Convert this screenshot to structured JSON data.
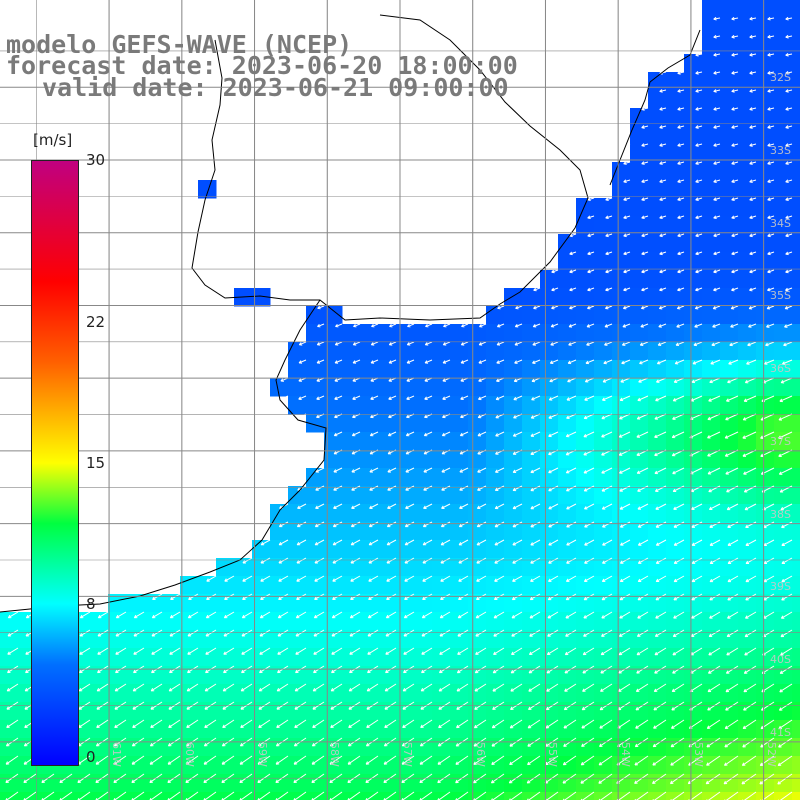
{
  "title": {
    "model": "modelo GEFS-WAVE (NCEP)",
    "forecast": "forecast date: 2023-06-20 18:00:00",
    "valid": "valid date: 2023-06-21 09:00:00"
  },
  "colorbar": {
    "unit": "[m/s]",
    "min": 0,
    "max": 30,
    "ticks": [
      {
        "label": "30",
        "value": 30
      },
      {
        "label": "22",
        "value": 22
      },
      {
        "label": "15",
        "value": 15
      },
      {
        "label": "8",
        "value": 8
      },
      {
        "label": "0",
        "value": 0
      }
    ]
  },
  "map": {
    "lon_range": [
      -62.5,
      -51.5
    ],
    "lat_range": [
      -41.8,
      -30.8
    ],
    "lat_labels": [
      {
        "label": "32S",
        "lat": -32
      },
      {
        "label": "33S",
        "lat": -33
      },
      {
        "label": "34S",
        "lat": -34
      },
      {
        "label": "35S",
        "lat": -35
      },
      {
        "label": "36S",
        "lat": -36
      },
      {
        "label": "37S",
        "lat": -37
      },
      {
        "label": "38S",
        "lat": -38
      },
      {
        "label": "39S",
        "lat": -39
      },
      {
        "label": "40S",
        "lat": -40
      },
      {
        "label": "41S",
        "lat": -41
      }
    ],
    "lon_labels": [
      {
        "label": "61W",
        "lon": -61
      },
      {
        "label": "60W",
        "lon": -60
      },
      {
        "label": "59W",
        "lon": -59
      },
      {
        "label": "58W",
        "lon": -58
      },
      {
        "label": "57W",
        "lon": -57
      },
      {
        "label": "56W",
        "lon": -56
      },
      {
        "label": "55W",
        "lon": -55
      },
      {
        "label": "54W",
        "lon": -54
      },
      {
        "label": "53W",
        "lon": -53
      },
      {
        "label": "52W",
        "lon": -52
      }
    ],
    "wind_direction": "from east-northeast, arrows pointing west-southwest",
    "colors": {
      "land": "#ffffff",
      "grid": "#888888",
      "coast": "#000000",
      "arrow": "#ffffff"
    }
  }
}
